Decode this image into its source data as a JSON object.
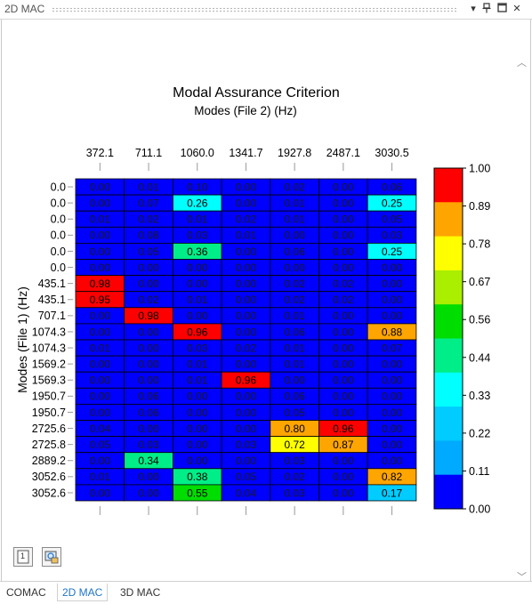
{
  "window": {
    "title": "2D MAC"
  },
  "tabs": [
    {
      "label": "COMAC"
    },
    {
      "label": "2D MAC"
    },
    {
      "label": "3D MAC"
    }
  ],
  "toolbar": {
    "btn1_label": "1"
  },
  "chart_data": {
    "type": "heatmap",
    "title": "Modal Assurance Criterion",
    "subtitle": "Modes (File 2) (Hz)",
    "ylabel": "Modes (File 1) (Hz)",
    "x_labels": [
      "372.1",
      "711.1",
      "1060.0",
      "1341.7",
      "1927.8",
      "2487.1",
      "3030.5"
    ],
    "y_labels": [
      "0.0",
      "0.0",
      "0.0",
      "0.0",
      "0.0",
      "0.0",
      "435.1",
      "435.1",
      "707.1",
      "1074.3",
      "1074.3",
      "1569.2",
      "1569.3",
      "1950.7",
      "1950.7",
      "2725.6",
      "2725.8",
      "2889.2",
      "3052.6",
      "3052.6"
    ],
    "values": [
      [
        0.0,
        0.01,
        0.1,
        0.0,
        0.02,
        0.0,
        0.06
      ],
      [
        0.0,
        0.07,
        0.26,
        0.0,
        0.01,
        0.0,
        0.25
      ],
      [
        0.01,
        0.02,
        0.01,
        0.02,
        0.01,
        0.0,
        0.05
      ],
      [
        0.0,
        0.08,
        0.03,
        0.01,
        0.0,
        0.0,
        0.03
      ],
      [
        0.0,
        0.05,
        0.36,
        0.0,
        0.06,
        0.0,
        0.25
      ],
      [
        0.0,
        0.0,
        0.0,
        0.0,
        0.0,
        0.0,
        0.0
      ],
      [
        0.98,
        0.0,
        0.0,
        0.0,
        0.02,
        0.02,
        0.0
      ],
      [
        0.95,
        0.02,
        0.01,
        0.0,
        0.02,
        0.02,
        0.0
      ],
      [
        0.0,
        0.98,
        0.0,
        0.0,
        0.01,
        0.0,
        0.0
      ],
      [
        0.0,
        0.0,
        0.96,
        0.0,
        0.06,
        0.0,
        0.88
      ],
      [
        0.01,
        0.0,
        0.03,
        0.02,
        0.01,
        0.0,
        0.07
      ],
      [
        0.0,
        0.0,
        0.01,
        0.0,
        0.01,
        0.0,
        0.0
      ],
      [
        0.0,
        0.0,
        0.01,
        0.96,
        0.0,
        0.0,
        0.0
      ],
      [
        0.0,
        0.06,
        0.0,
        0.0,
        0.06,
        0.0,
        0.0
      ],
      [
        0.0,
        0.06,
        0.0,
        0.0,
        0.05,
        0.0,
        0.0
      ],
      [
        0.04,
        0.0,
        0.0,
        0.0,
        0.8,
        0.96,
        0.0
      ],
      [
        0.05,
        0.03,
        0.0,
        0.03,
        0.72,
        0.87,
        0.0
      ],
      [
        0.0,
        0.34,
        0.0,
        0.0,
        0.03,
        0.0,
        0.0
      ],
      [
        0.01,
        0.0,
        0.38,
        0.05,
        0.02,
        0.0,
        0.82
      ],
      [
        0.0,
        0.0,
        0.55,
        0.04,
        0.03,
        0.0,
        0.17
      ]
    ],
    "colorbar": {
      "ticks": [
        "1.00",
        "0.89",
        "0.78",
        "0.67",
        "0.56",
        "0.44",
        "0.33",
        "0.22",
        "0.11",
        "0.00"
      ],
      "colors": [
        "#ff0000",
        "#ffa500",
        "#ffff00",
        "#aaee00",
        "#00dd00",
        "#00ee88",
        "#00ffff",
        "#00ccff",
        "#00aaff",
        "#0000ff"
      ]
    }
  }
}
